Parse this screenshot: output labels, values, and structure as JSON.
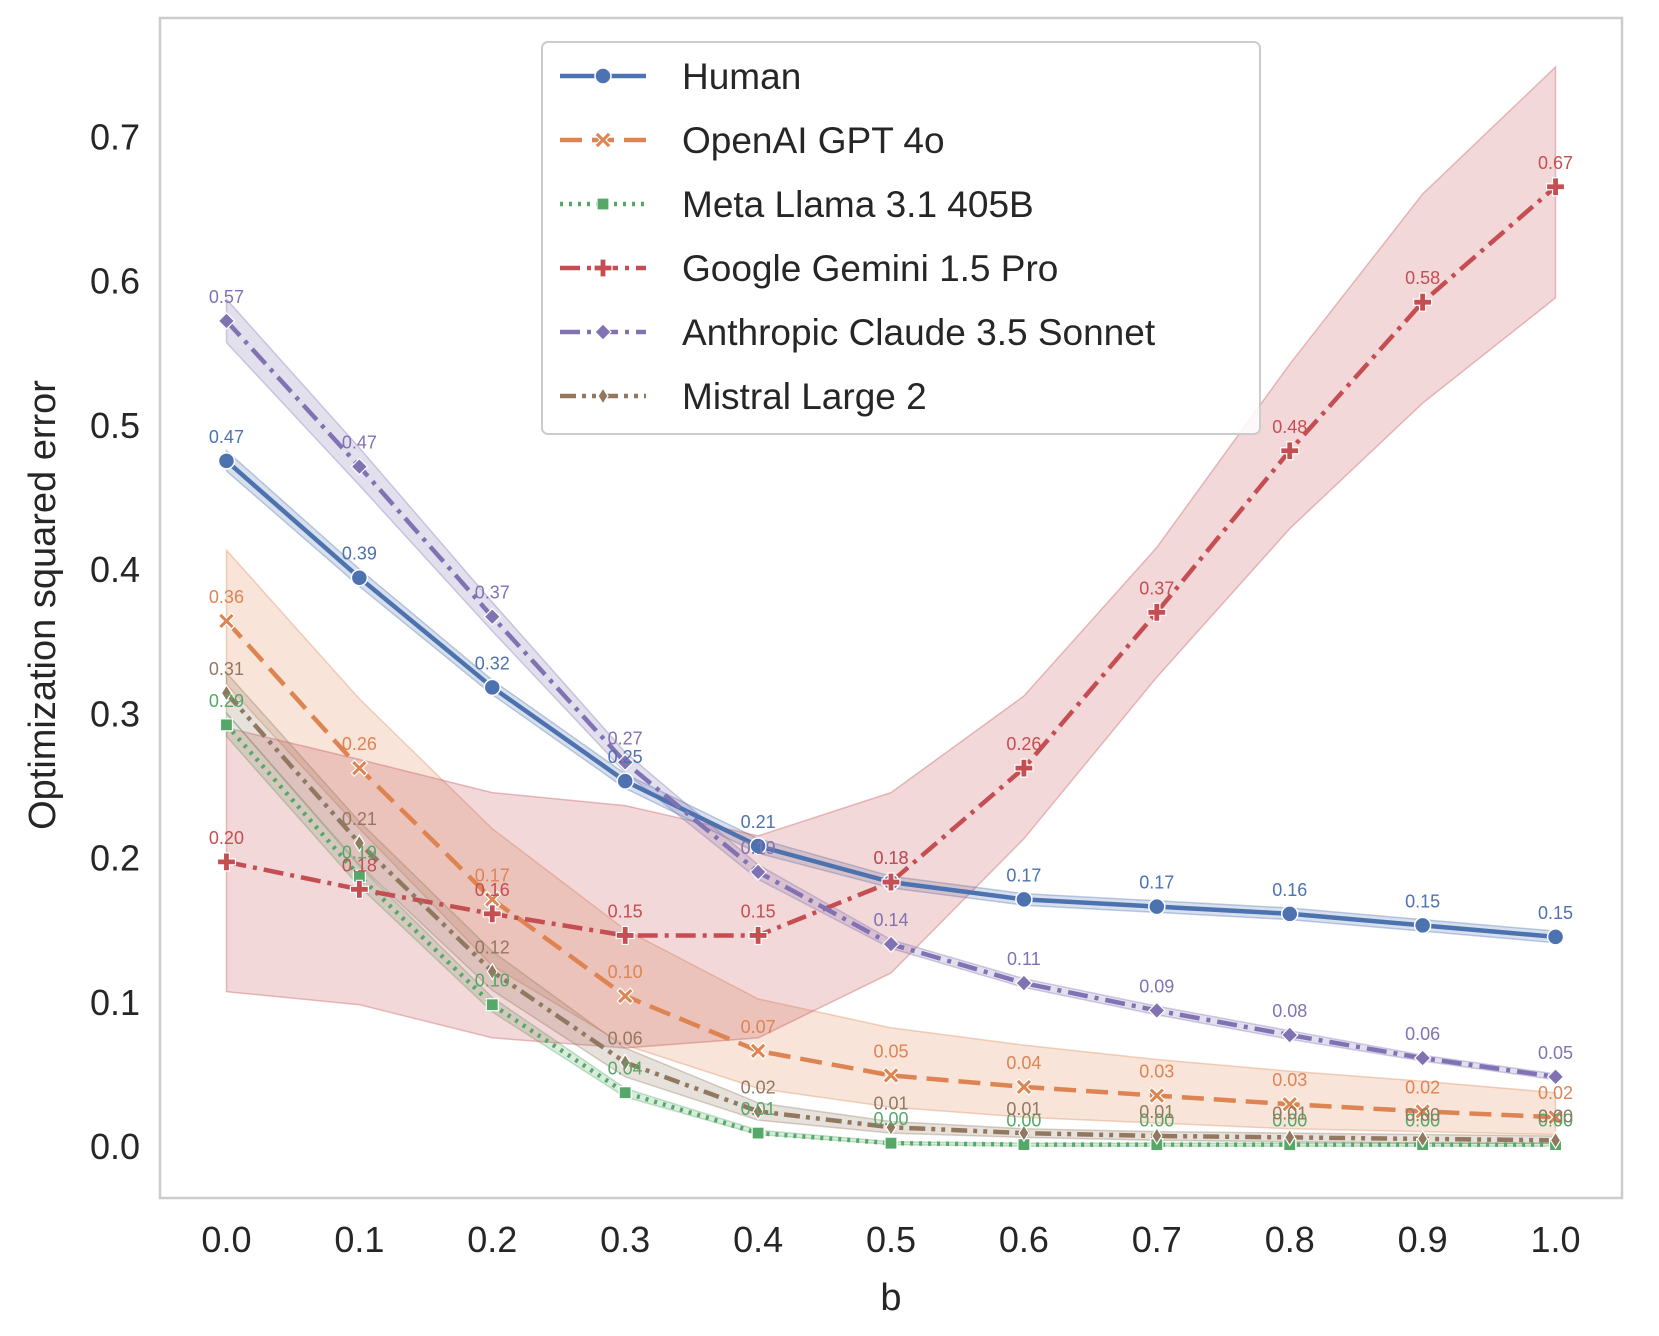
{
  "chart_data": {
    "type": "line",
    "title": "",
    "xlabel": "b",
    "ylabel": "Optimization squared error",
    "x": [
      0.0,
      0.1,
      0.2,
      0.3,
      0.4,
      0.5,
      0.6,
      0.7,
      0.8,
      0.9,
      1.0
    ],
    "x_tick_labels": [
      "0.0",
      "0.1",
      "0.2",
      "0.3",
      "0.4",
      "0.5",
      "0.6",
      "0.7",
      "0.8",
      "0.9",
      "1.0"
    ],
    "y_ticks": [
      0.0,
      0.1,
      0.2,
      0.3,
      0.4,
      0.5,
      0.6,
      0.7
    ],
    "y_tick_labels": [
      "0.0",
      "0.1",
      "0.2",
      "0.3",
      "0.4",
      "0.5",
      "0.6",
      "0.7"
    ],
    "xlim": [
      -0.05,
      1.05
    ],
    "ylim": [
      -0.036,
      0.782
    ],
    "grid": false,
    "legend_position": "top-center",
    "series": [
      {
        "name": "Human",
        "color": "#4c72b0",
        "dash": "solid",
        "marker": "circle",
        "values": [
          0.475,
          0.394,
          0.318,
          0.253,
          0.208,
          0.183,
          0.171,
          0.166,
          0.161,
          0.153,
          0.145
        ],
        "lower": [
          0.468,
          0.388,
          0.313,
          0.248,
          0.203,
          0.179,
          0.167,
          0.162,
          0.157,
          0.149,
          0.141
        ],
        "upper": [
          0.482,
          0.4,
          0.323,
          0.258,
          0.213,
          0.187,
          0.175,
          0.17,
          0.165,
          0.157,
          0.149
        ],
        "labels": [
          "0.47",
          "0.39",
          "0.32",
          "0.25",
          "0.21",
          "0.18",
          "0.17",
          "0.17",
          "0.16",
          "0.15",
          "0.15"
        ]
      },
      {
        "name": "OpenAI GPT 4o",
        "color": "#dd8452",
        "dash": "dashed",
        "marker": "x",
        "values": [
          0.364,
          0.262,
          0.171,
          0.104,
          0.066,
          0.049,
          0.041,
          0.035,
          0.029,
          0.024,
          0.02
        ],
        "lower": [
          0.32,
          0.22,
          0.125,
          0.07,
          0.04,
          0.027,
          0.02,
          0.016,
          0.012,
          0.01,
          0.008
        ],
        "upper": [
          0.413,
          0.31,
          0.22,
          0.15,
          0.102,
          0.082,
          0.07,
          0.06,
          0.052,
          0.045,
          0.037
        ],
        "labels": [
          "0.36",
          "0.26",
          "0.17",
          "0.10",
          "0.07",
          "0.05",
          "0.04",
          "0.03",
          "0.03",
          "0.02",
          "0.02"
        ]
      },
      {
        "name": "Meta Llama 3.1 405B",
        "color": "#55a868",
        "dash": "dotted",
        "marker": "square",
        "values": [
          0.292,
          0.187,
          0.098,
          0.037,
          0.009,
          0.002,
          0.001,
          0.001,
          0.001,
          0.001,
          0.001
        ],
        "lower": [
          0.284,
          0.18,
          0.093,
          0.034,
          0.008,
          0.001,
          0.0,
          0.0,
          0.0,
          0.0,
          0.0
        ],
        "upper": [
          0.3,
          0.194,
          0.103,
          0.04,
          0.011,
          0.003,
          0.002,
          0.002,
          0.002,
          0.002,
          0.002
        ],
        "labels": [
          "0.29",
          "0.19",
          "0.10",
          "0.04",
          "0.01",
          "0.00",
          "0.00",
          "0.00",
          "0.00",
          "0.00",
          "0.00"
        ]
      },
      {
        "name": "Google Gemini 1.5 Pro",
        "color": "#c44e52",
        "dash": "dashdot",
        "marker": "plus",
        "values": [
          0.197,
          0.178,
          0.161,
          0.146,
          0.146,
          0.183,
          0.262,
          0.37,
          0.482,
          0.585,
          0.665
        ],
        "lower": [
          0.107,
          0.098,
          0.075,
          0.068,
          0.075,
          0.12,
          0.213,
          0.325,
          0.428,
          0.515,
          0.588
        ],
        "upper": [
          0.29,
          0.268,
          0.245,
          0.236,
          0.215,
          0.245,
          0.312,
          0.415,
          0.542,
          0.66,
          0.748
        ],
        "labels": [
          "0.20",
          "0.18",
          "0.16",
          "0.15",
          "0.15",
          "0.18",
          "0.26",
          "0.37",
          "0.48",
          "0.58",
          "0.67"
        ]
      },
      {
        "name": "Anthropic Claude 3.5 Sonnet",
        "color": "#8172b3",
        "dash": "dashdot",
        "marker": "diamond",
        "values": [
          0.572,
          0.471,
          0.367,
          0.266,
          0.19,
          0.14,
          0.113,
          0.094,
          0.077,
          0.061,
          0.048
        ],
        "lower": [
          0.557,
          0.458,
          0.357,
          0.259,
          0.185,
          0.137,
          0.11,
          0.091,
          0.074,
          0.059,
          0.046
        ],
        "upper": [
          0.587,
          0.484,
          0.377,
          0.273,
          0.195,
          0.143,
          0.116,
          0.097,
          0.08,
          0.063,
          0.05
        ],
        "labels": [
          "0.57",
          "0.47",
          "0.37",
          "0.27",
          "0.19",
          "0.14",
          "0.11",
          "0.09",
          "0.08",
          "0.06",
          "0.05"
        ]
      },
      {
        "name": "Mistral Large 2",
        "color": "#937860",
        "dash": "dashdotdot",
        "marker": "thin-diamond",
        "values": [
          0.314,
          0.21,
          0.121,
          0.058,
          0.024,
          0.013,
          0.009,
          0.007,
          0.006,
          0.005,
          0.004
        ],
        "lower": [
          0.3,
          0.195,
          0.108,
          0.048,
          0.018,
          0.009,
          0.006,
          0.004,
          0.003,
          0.002,
          0.002
        ],
        "upper": [
          0.328,
          0.225,
          0.135,
          0.068,
          0.03,
          0.017,
          0.012,
          0.01,
          0.009,
          0.008,
          0.007
        ],
        "labels": [
          "0.31",
          "0.21",
          "0.12",
          "0.06",
          "0.02",
          "0.01",
          "0.01",
          "0.01",
          "0.01",
          "0.00",
          "0.00"
        ]
      }
    ]
  }
}
